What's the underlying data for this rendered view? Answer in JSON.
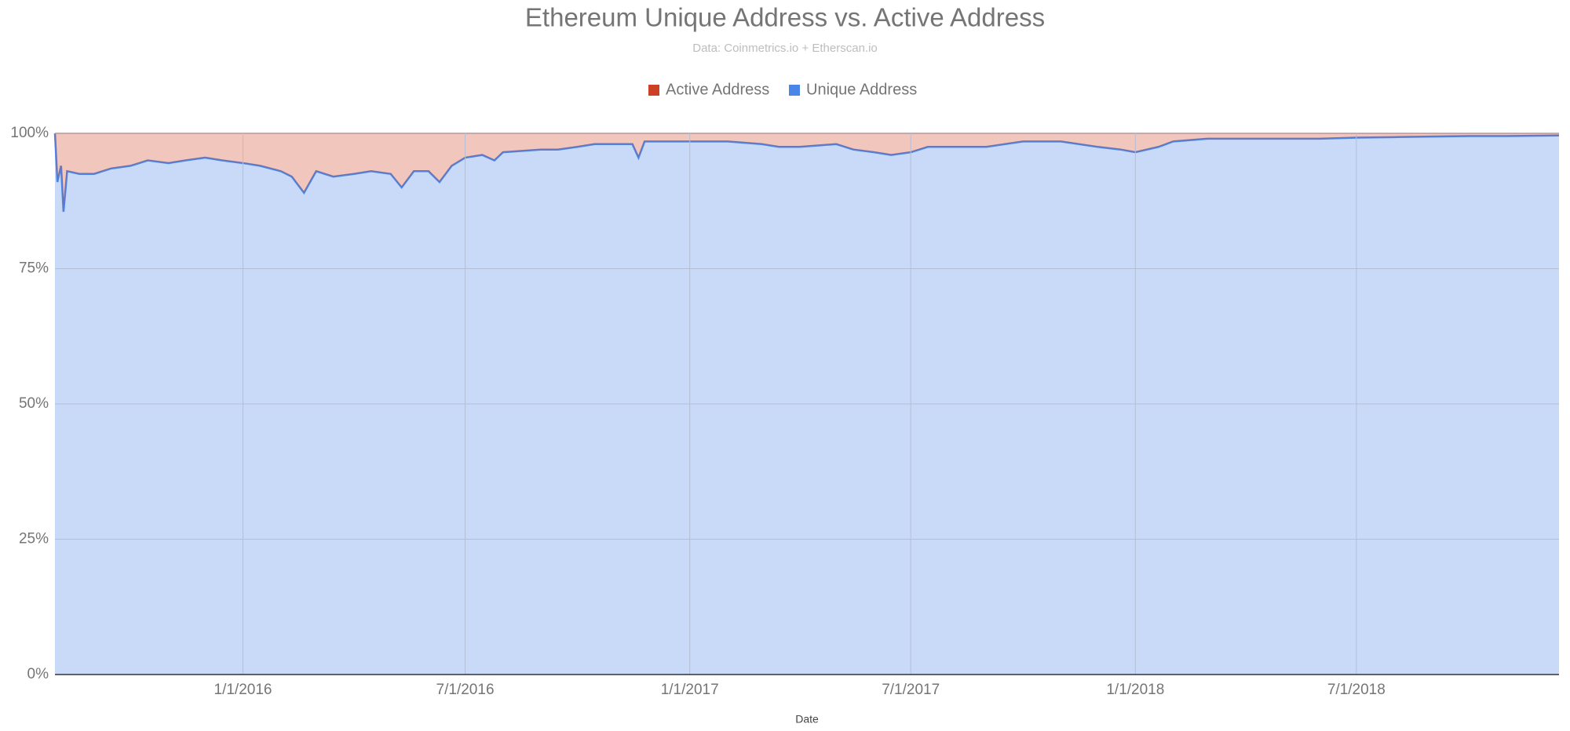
{
  "chart_data": {
    "type": "area",
    "stacked": true,
    "title": "Ethereum Unique Address vs. Active Address",
    "subtitle": "Data: Coinmetrics.io + Etherscan.io",
    "x_label": "Date",
    "x": [
      "7/31/2015",
      "8/2/2015",
      "8/5/2015",
      "8/7/2015",
      "8/10/2015",
      "8/20/2015",
      "9/1/2015",
      "9/15/2015",
      "10/1/2015",
      "10/15/2015",
      "11/1/2015",
      "11/15/2015",
      "12/1/2015",
      "12/15/2015",
      "1/1/2016",
      "1/15/2016",
      "2/1/2016",
      "2/10/2016",
      "2/20/2016",
      "3/1/2016",
      "3/15/2016",
      "4/1/2016",
      "4/15/2016",
      "5/1/2016",
      "5/10/2016",
      "5/20/2016",
      "6/1/2016",
      "6/10/2016",
      "6/20/2016",
      "7/1/2016",
      "7/15/2016",
      "7/25/2016",
      "8/1/2016",
      "9/1/2016",
      "9/15/2016",
      "10/1/2016",
      "10/15/2016",
      "11/1/2016",
      "11/15/2016",
      "11/20/2016",
      "11/25/2016",
      "12/15/2016",
      "1/1/2017",
      "2/1/2017",
      "3/1/2017",
      "3/15/2017",
      "4/1/2017",
      "5/1/2017",
      "5/15/2017",
      "6/1/2017",
      "6/15/2017",
      "7/1/2017",
      "7/15/2017",
      "8/1/2017",
      "9/1/2017",
      "10/1/2017",
      "11/1/2017",
      "12/1/2017",
      "12/20/2017",
      "1/1/2018",
      "1/20/2018",
      "2/1/2018",
      "3/1/2018",
      "4/1/2018",
      "5/1/2018",
      "6/1/2018",
      "7/1/2018",
      "8/1/2018",
      "9/1/2018",
      "10/1/2018",
      "11/1/2018",
      "12/14/2018"
    ],
    "series": [
      {
        "name": "Active Address",
        "color": "#cc4125",
        "values": [
          0,
          9,
          6,
          14.5,
          7,
          7.5,
          7.5,
          6.5,
          6,
          5,
          5.5,
          5,
          4.5,
          5,
          5.5,
          6,
          7,
          8,
          11,
          7,
          8,
          7.5,
          7,
          7.5,
          10,
          7,
          7,
          9,
          6,
          4.5,
          4,
          5,
          3.5,
          3,
          3,
          2.5,
          2,
          2,
          2,
          4.5,
          1.5,
          1.5,
          1.5,
          1.5,
          2,
          2.5,
          2.5,
          2,
          3,
          3.5,
          4,
          3.5,
          2.5,
          2.5,
          2.5,
          1.5,
          1.5,
          2.5,
          3,
          3.5,
          2.5,
          1.5,
          1,
          1,
          1,
          1,
          0.8,
          0.7,
          0.6,
          0.5,
          0.5,
          0.4
        ]
      },
      {
        "name": "Unique Address",
        "color": "#4a86e8",
        "values": [
          100,
          91,
          94,
          85.5,
          93,
          92.5,
          92.5,
          93.5,
          94,
          95,
          94.5,
          95,
          95.5,
          95,
          94.5,
          94,
          93,
          92,
          89,
          93,
          92,
          92.5,
          93,
          92.5,
          90,
          93,
          93,
          91,
          94,
          95.5,
          96,
          95,
          96.5,
          97,
          97,
          97.5,
          98,
          98,
          98,
          95.5,
          98.5,
          98.5,
          98.5,
          98.5,
          98,
          97.5,
          97.5,
          98,
          97,
          96.5,
          96,
          96.5,
          97.5,
          97.5,
          97.5,
          98.5,
          98.5,
          97.5,
          97,
          96.5,
          97.5,
          98.5,
          99,
          99,
          99,
          99,
          99.2,
          99.3,
          99.4,
          99.5,
          99.5,
          99.6
        ]
      }
    ],
    "xlim": [
      "7/31/2015",
      "12/14/2018"
    ],
    "xticks": [
      "1/1/2016",
      "7/1/2016",
      "1/1/2017",
      "7/1/2017",
      "1/1/2018",
      "7/1/2018"
    ],
    "ylim": [
      0,
      100
    ],
    "yticks": [
      {
        "value": 0,
        "label": "0%"
      },
      {
        "value": 25,
        "label": "25%"
      },
      {
        "value": 50,
        "label": "50%"
      },
      {
        "value": 75,
        "label": "75%"
      },
      {
        "value": 100,
        "label": "100%"
      }
    ],
    "grid": true
  }
}
